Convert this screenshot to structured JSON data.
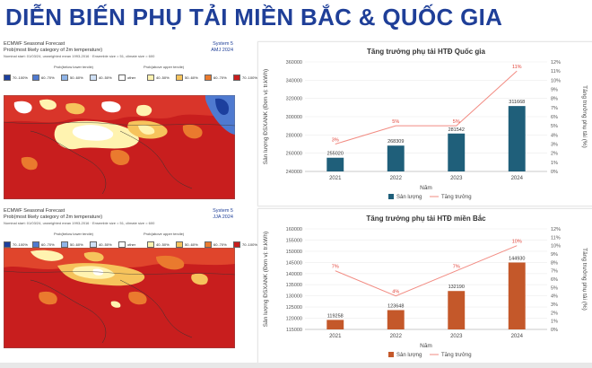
{
  "page": {
    "title": "DIỄN BIẾN PHỤ TẢI MIỀN BẮC & QUỐC GIA"
  },
  "maps": [
    {
      "line1": "ECMWF Seasonal Forecast",
      "line2": "Prob(most likely category of 2m temperature)",
      "line3": "Nominal start: 01/03/24, unweighted mean 1993-2016 · Ensemble size = 51, climate size = 600",
      "system": "System 5",
      "period": "AMJ 2024",
      "legend_left": "Prob(below lower tercile)",
      "legend_right": "Prob(above upper tercile)",
      "legend": [
        {
          "label": "70..100%",
          "color": "#1c3f9e"
        },
        {
          "label": "60..70%",
          "color": "#4f7ad0"
        },
        {
          "label": "50..60%",
          "color": "#8fb4e8"
        },
        {
          "label": "40..50%",
          "color": "#cfe0f6"
        },
        {
          "label": "other",
          "color": "#ffffff"
        },
        {
          "label": "40..50%",
          "color": "#fff3b0"
        },
        {
          "label": "50..60%",
          "color": "#f6c35c"
        },
        {
          "label": "60..70%",
          "color": "#ea7a2e"
        },
        {
          "label": "70..100%",
          "color": "#c81e1e"
        }
      ]
    },
    {
      "line1": "ECMWF Seasonal Forecast",
      "line2": "Prob(most likely category of 2m temperature)",
      "line3": "Nominal start: 01/03/24, unweighted mean 1993-2016 · Ensemble size = 51, climate size = 600",
      "system": "System 5",
      "period": "JJA 2024",
      "legend_left": "Prob(below lower tercile)",
      "legend_right": "Prob(above upper tercile)",
      "legend": [
        {
          "label": "70..100%",
          "color": "#1c3f9e"
        },
        {
          "label": "60..70%",
          "color": "#4f7ad0"
        },
        {
          "label": "50..60%",
          "color": "#8fb4e8"
        },
        {
          "label": "40..50%",
          "color": "#cfe0f6"
        },
        {
          "label": "other",
          "color": "#ffffff"
        },
        {
          "label": "40..50%",
          "color": "#fff3b0"
        },
        {
          "label": "50..60%",
          "color": "#f6c35c"
        },
        {
          "label": "60..70%",
          "color": "#ea7a2e"
        },
        {
          "label": "70..100%",
          "color": "#c81e1e"
        }
      ]
    }
  ],
  "chart_data": [
    {
      "type": "bar",
      "title": "Tăng trưởng phụ tải HTĐ Quốc gia",
      "categories": [
        "2021",
        "2022",
        "2023",
        "2024"
      ],
      "xlabel": "Năm",
      "ylabel": "Sản lượng ĐSXANK (Đơn vị: tr.kWh)",
      "y2label": "Tăng trưởng phụ tải (%)",
      "ylim": [
        240000,
        360000
      ],
      "yticks": [
        "240000",
        "260000",
        "280000",
        "300000",
        "320000",
        "340000",
        "360000"
      ],
      "y2lim": [
        0,
        12
      ],
      "y2ticks": [
        "0%",
        "1%",
        "2%",
        "3%",
        "4%",
        "5%",
        "6%",
        "7%",
        "8%",
        "9%",
        "10%",
        "11%",
        "12%"
      ],
      "bar_color": "#1f5f7a",
      "line_color": "#f28b82",
      "series": [
        {
          "name": "Sản lượng",
          "values": [
            255020,
            268309,
            281542,
            311668
          ],
          "labels": [
            "255020",
            "268309",
            "281542",
            "311668"
          ]
        },
        {
          "name": "Tăng trưởng",
          "values": [
            3,
            5,
            5,
            11
          ],
          "labels": [
            "3%",
            "5%",
            "5%",
            "11%"
          ]
        }
      ],
      "legend": [
        "Sản lượng",
        "Tăng trưởng"
      ]
    },
    {
      "type": "bar",
      "title": "Tăng trưởng phụ tải HTĐ miền Bắc",
      "categories": [
        "2021",
        "2022",
        "2023",
        "2024"
      ],
      "xlabel": "Năm",
      "ylabel": "Sản lượng ĐSXANK (Đơn vị: tr.kWh)",
      "y2label": "Tăng trưởng phụ tải (%)",
      "ylim": [
        115000,
        160000
      ],
      "yticks": [
        "115000",
        "120000",
        "125000",
        "130000",
        "135000",
        "140000",
        "145000",
        "150000",
        "155000",
        "160000"
      ],
      "y2lim": [
        0,
        12
      ],
      "y2ticks": [
        "0%",
        "1%",
        "2%",
        "3%",
        "4%",
        "5%",
        "6%",
        "7%",
        "8%",
        "9%",
        "10%",
        "11%",
        "12%"
      ],
      "bar_color": "#c4582a",
      "line_color": "#f28b82",
      "series": [
        {
          "name": "Sản lượng",
          "values": [
            119258,
            123648,
            132190,
            144930
          ],
          "labels": [
            "119258",
            "123648",
            "132190",
            "144930"
          ]
        },
        {
          "name": "Tăng trưởng",
          "values": [
            7,
            4,
            7,
            10
          ],
          "labels": [
            "7%",
            "4%",
            "7%",
            "10%"
          ]
        }
      ],
      "legend": [
        "Sản lượng",
        "Tăng trưởng"
      ]
    }
  ]
}
